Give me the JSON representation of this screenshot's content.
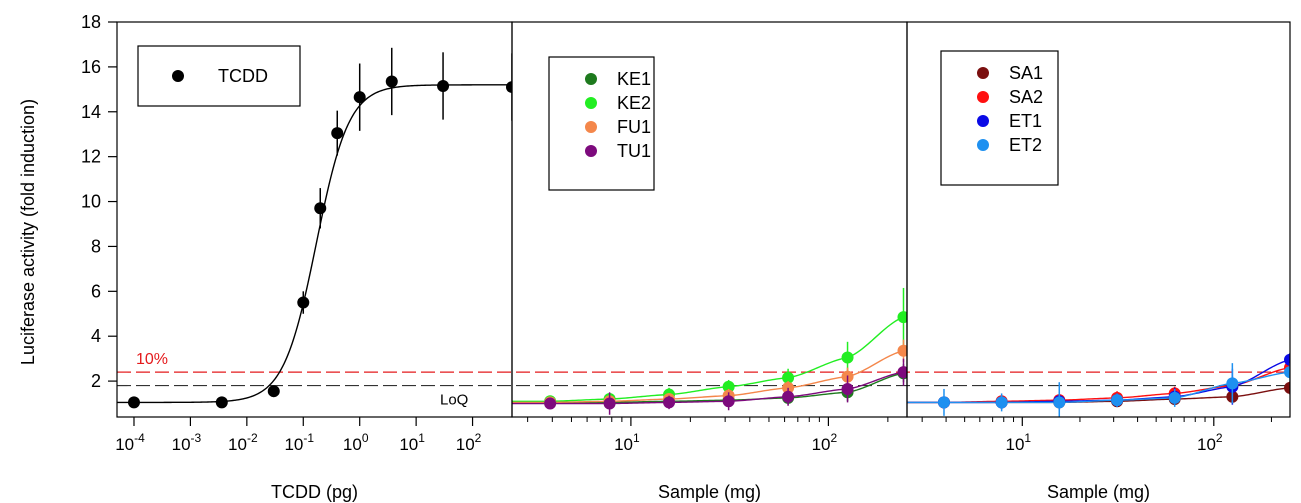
{
  "chart_data": {
    "type": "scatter",
    "ylabel": "Luciferase activity (fold induction)",
    "ylim": [
      0.4,
      18
    ],
    "yticks": [
      2,
      4,
      6,
      8,
      10,
      12,
      14,
      16,
      18
    ],
    "reference_lines": [
      {
        "y": 2.4,
        "label": "10%",
        "color": "#e41a1c",
        "style": "dashed"
      },
      {
        "y": 1.8,
        "label": "LoQ",
        "color": "#333333",
        "style": "dashed"
      }
    ],
    "panels": [
      {
        "xlabel": "TCDD (pg)",
        "xscale": "log",
        "xlim": [
          5e-05,
          500
        ],
        "xticks": [
          {
            "value": 0.0001,
            "base": "10",
            "exp": "-4"
          },
          {
            "value": 0.001,
            "base": "10",
            "exp": "-3"
          },
          {
            "value": 0.01,
            "base": "10",
            "exp": "-2"
          },
          {
            "value": 0.1,
            "base": "10",
            "exp": "-1"
          },
          {
            "value": 1,
            "base": "10",
            "exp": "0"
          },
          {
            "value": 10,
            "base": "10",
            "exp": "1"
          },
          {
            "value": 100,
            "base": "10",
            "exp": "2"
          }
        ],
        "fit": {
          "bottom": 1.05,
          "top": 15.2,
          "ec50": 0.17,
          "hill": 1.5
        },
        "series": [
          {
            "name": "TCDD",
            "color": "#000000",
            "x": [
              0.0001,
              0.0036,
              0.03,
              0.1,
              0.2,
              0.4,
              1,
              3.7,
              30,
              500
            ],
            "y": [
              1.05,
              1.05,
              1.55,
              5.5,
              9.7,
              13.05,
              14.65,
              15.35,
              15.15,
              15.1
            ],
            "err": [
              0.05,
              0.05,
              0.15,
              0.5,
              0.9,
              1.0,
              1.5,
              1.5,
              1.5,
              1.5
            ]
          }
        ]
      },
      {
        "xlabel": "Sample (mg)",
        "xscale": "log",
        "xlim": [
          2.5,
          250
        ],
        "xticks": [
          {
            "value": 10,
            "base": "10",
            "exp": "1"
          },
          {
            "value": 100,
            "base": "10",
            "exp": "2"
          }
        ],
        "series": [
          {
            "name": "KE1",
            "color": "#1e7a1e",
            "x": [
              3.9,
              7.8,
              15.6,
              31.25,
              62.5,
              125,
              240
            ],
            "y": [
              1.05,
              1.05,
              1.1,
              1.15,
              1.25,
              1.5,
              2.35
            ],
            "err": [
              0.1,
              0.2,
              0.2,
              0.2,
              0.3,
              0.4,
              0.4
            ]
          },
          {
            "name": "KE2",
            "color": "#22ee22",
            "x": [
              3.9,
              7.8,
              15.6,
              31.25,
              62.5,
              125,
              240
            ],
            "y": [
              1.1,
              1.2,
              1.4,
              1.75,
              2.15,
              3.05,
              4.85
            ],
            "err": [
              0.1,
              0.2,
              0.3,
              0.3,
              0.4,
              0.7,
              1.3
            ]
          },
          {
            "name": "FU1",
            "color": "#f4874b",
            "x": [
              3.9,
              7.8,
              15.6,
              31.25,
              62.5,
              125,
              240
            ],
            "y": [
              1.05,
              1.1,
              1.2,
              1.35,
              1.7,
              2.2,
              3.35
            ],
            "err": [
              0.1,
              0.2,
              0.2,
              0.3,
              0.3,
              0.4,
              0.5
            ]
          },
          {
            "name": "TU1",
            "color": "#7d0a7d",
            "x": [
              3.9,
              7.8,
              15.6,
              31.25,
              62.5,
              125,
              240
            ],
            "y": [
              1.0,
              1.0,
              1.05,
              1.1,
              1.3,
              1.65,
              2.4
            ],
            "err": [
              0.1,
              0.5,
              0.3,
              0.4,
              0.4,
              0.6,
              0.6
            ]
          }
        ]
      },
      {
        "xlabel": "Sample (mg)",
        "xscale": "log",
        "xlim": [
          2.5,
          250
        ],
        "xticks": [
          {
            "value": 10,
            "base": "10",
            "exp": "1"
          },
          {
            "value": 100,
            "base": "10",
            "exp": "2"
          }
        ],
        "series": [
          {
            "name": "SA1",
            "color": "#7b0f0f",
            "x": [
              3.9,
              7.8,
              15.6,
              31.25,
              62.5,
              125,
              250
            ],
            "y": [
              1.05,
              1.05,
              1.05,
              1.1,
              1.2,
              1.3,
              1.7
            ],
            "err": [
              0.1,
              0.2,
              0.2,
              0.2,
              0.2,
              0.3,
              0.3
            ]
          },
          {
            "name": "SA2",
            "color": "#ff1010",
            "x": [
              3.9,
              7.8,
              15.6,
              31.25,
              62.5,
              125,
              250
            ],
            "y": [
              1.05,
              1.1,
              1.15,
              1.25,
              1.45,
              1.8,
              2.6
            ],
            "err": [
              0.1,
              0.2,
              0.2,
              0.3,
              0.3,
              0.4,
              0.4
            ]
          },
          {
            "name": "ET1",
            "color": "#0a0ae6",
            "x": [
              3.9,
              7.8,
              15.6,
              31.25,
              62.5,
              125,
              250
            ],
            "y": [
              1.05,
              1.05,
              1.1,
              1.15,
              1.3,
              1.75,
              2.95
            ],
            "err": [
              0.1,
              0.3,
              0.4,
              0.3,
              0.4,
              0.8,
              0.3
            ]
          },
          {
            "name": "ET2",
            "color": "#1e90f0",
            "x": [
              3.9,
              7.8,
              15.6,
              31.25,
              62.5,
              125,
              250
            ],
            "y": [
              1.05,
              1.05,
              1.05,
              1.15,
              1.25,
              1.9,
              2.4
            ],
            "err": [
              0.6,
              0.4,
              0.9,
              0.3,
              0.4,
              0.9,
              0.4
            ]
          }
        ]
      }
    ]
  }
}
